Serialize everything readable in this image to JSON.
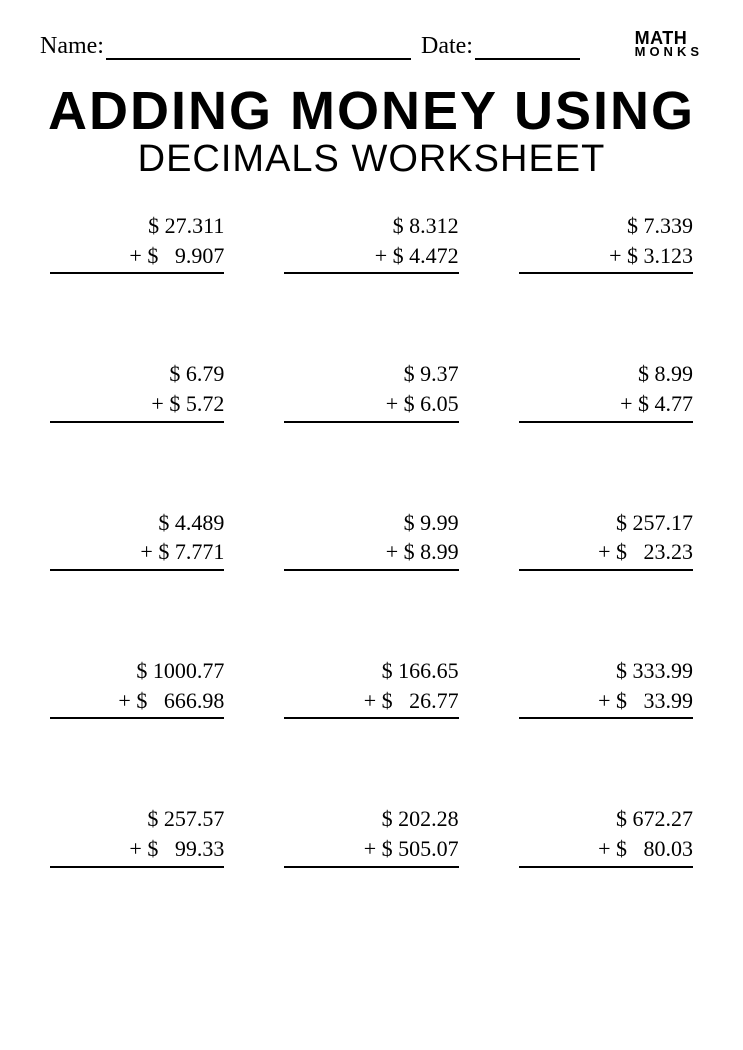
{
  "header": {
    "name_label": "Name:",
    "date_label": "Date:",
    "logo_line1": "MATH",
    "logo_line2": "MONKS"
  },
  "title": {
    "line1": "ADDING MONEY USING",
    "line2": "DECIMALS WORKSHEET"
  },
  "colors": {
    "background": "#ffffff",
    "text": "#000000",
    "rule": "#000000"
  },
  "typography": {
    "body_font": "Georgia, serif",
    "title1_font": "Impact, Arial Black, sans-serif",
    "title1_size_pt": 40,
    "title2_font": "Arial, Helvetica, sans-serif",
    "title2_size_pt": 28,
    "problem_size_pt": 16
  },
  "layout": {
    "columns": 3,
    "rows": 5
  },
  "problems": [
    {
      "top": "   $ 27.311",
      "bottom": "+ $   9.907"
    },
    {
      "top": "   $ 8.312",
      "bottom": "+ $ 4.472"
    },
    {
      "top": "   $ 7.339",
      "bottom": "+ $ 3.123"
    },
    {
      "top": "   $ 6.79",
      "bottom": "+ $ 5.72"
    },
    {
      "top": "   $ 9.37",
      "bottom": "+ $ 6.05"
    },
    {
      "top": "   $ 8.99",
      "bottom": "+ $ 4.77"
    },
    {
      "top": "   $ 4.489",
      "bottom": "+ $ 7.771"
    },
    {
      "top": "   $ 9.99",
      "bottom": "+ $ 8.99"
    },
    {
      "top": "   $ 257.17",
      "bottom": "+ $   23.23"
    },
    {
      "top": "   $ 1000.77",
      "bottom": "+ $   666.98"
    },
    {
      "top": "   $ 166.65",
      "bottom": "+ $   26.77"
    },
    {
      "top": "   $ 333.99",
      "bottom": "+ $   33.99"
    },
    {
      "top": "   $ 257.57",
      "bottom": "+ $   99.33"
    },
    {
      "top": "   $ 202.28",
      "bottom": "+ $ 505.07"
    },
    {
      "top": "   $ 672.27",
      "bottom": "+ $   80.03"
    }
  ]
}
